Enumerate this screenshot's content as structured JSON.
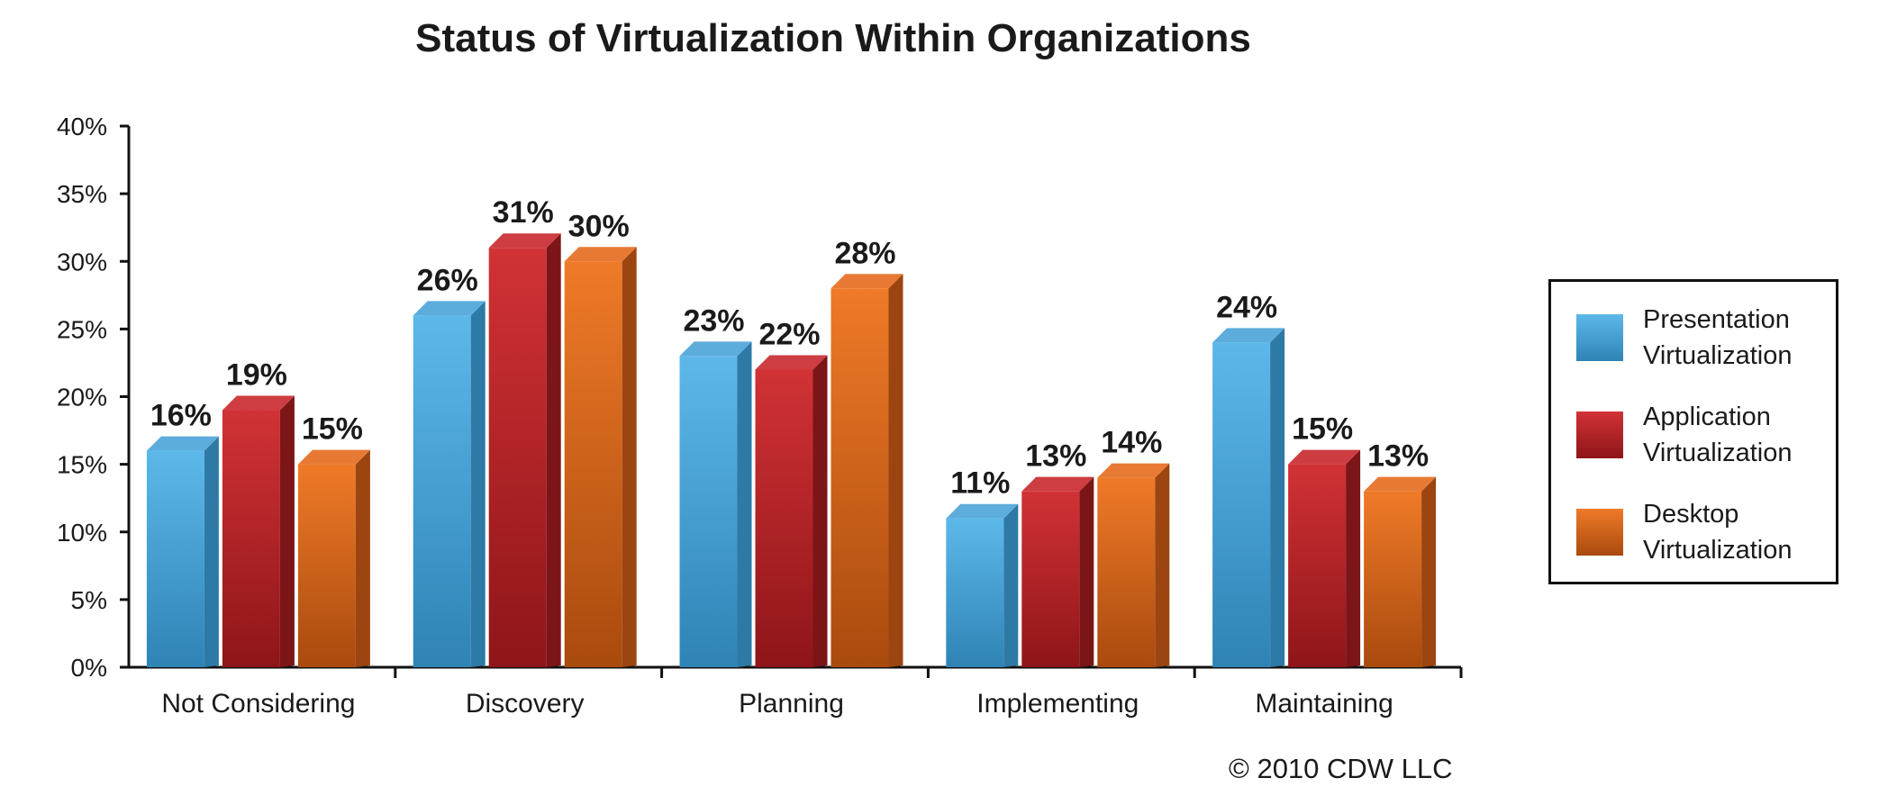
{
  "chart_data": {
    "type": "bar",
    "title": "Status of Virtualization Within Organizations",
    "xlabel": "",
    "ylabel": "",
    "categories": [
      "Not Considering",
      "Discovery",
      "Planning",
      "Implementing",
      "Maintaining"
    ],
    "series": [
      {
        "name": "Presentation Virtualization",
        "values": [
          16,
          26,
          23,
          11,
          24
        ],
        "labels": [
          "16%",
          "26%",
          "23%",
          "11%",
          "24%"
        ],
        "color": "#4aa3d8",
        "color_dark": "#2e7aa6"
      },
      {
        "name": "Application Virtualization",
        "values": [
          19,
          31,
          22,
          13,
          15
        ],
        "labels": [
          "19%",
          "31%",
          "22%",
          "13%",
          "15%"
        ],
        "color": "#c8282c",
        "color_dark": "#7c1518"
      },
      {
        "name": "Desktop Virtualization",
        "values": [
          15,
          30,
          28,
          14,
          13
        ],
        "labels": [
          "15%",
          "30%",
          "28%",
          "14%",
          "13%"
        ],
        "color": "#e56a1e",
        "color_dark": "#9c4510"
      }
    ],
    "ylim": [
      0,
      40
    ],
    "yticks": [
      0,
      5,
      10,
      15,
      20,
      25,
      30,
      35,
      40
    ],
    "ytick_labels": [
      "0%",
      "5%",
      "10%",
      "15%",
      "20%",
      "25%",
      "30%",
      "35%",
      "40%"
    ],
    "grid": false,
    "legend_position": "right"
  },
  "legend": {
    "items": [
      {
        "line1": "Presentation",
        "line2": "Virtualization",
        "color": "#4aa3d8"
      },
      {
        "line1": "Application",
        "line2": "Virtualization",
        "color": "#c8282c"
      },
      {
        "line1": "Desktop",
        "line2": "Virtualization",
        "color": "#e56a1e"
      }
    ]
  },
  "copyright": "© 2010 CDW LLC"
}
